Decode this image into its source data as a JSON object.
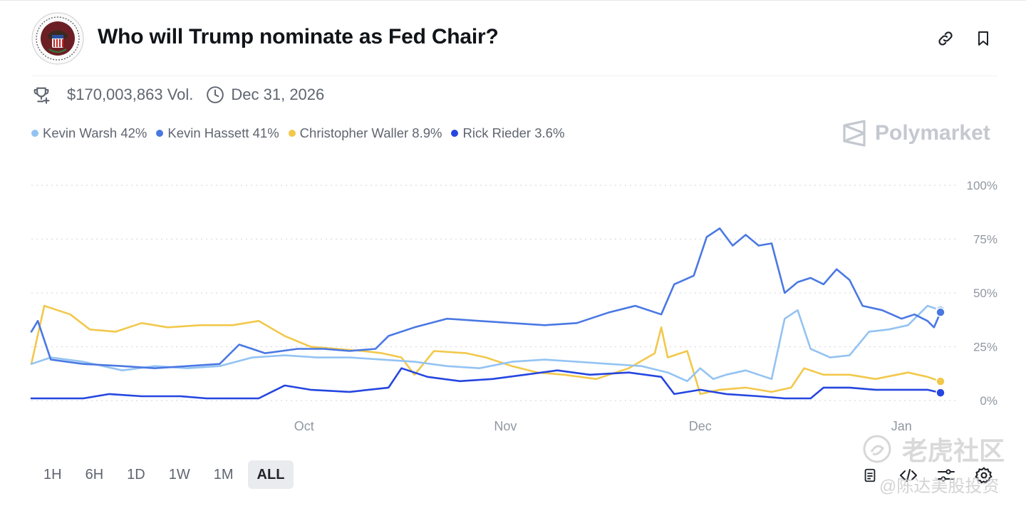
{
  "market": {
    "title": "Who will Trump nominate as Fed Chair?",
    "volume": "$170,003,863 Vol.",
    "end_date": "Dec 31, 2026",
    "brand": "Polymarket"
  },
  "icons": {
    "link": "link-icon",
    "bookmark": "bookmark-icon",
    "trophy": "trophy-icon",
    "clock": "clock-icon",
    "doc": "document-icon",
    "embed": "embed-code-icon",
    "filter": "sliders-icon",
    "settings": "gear-icon",
    "logo": "federal-reserve-seal-icon"
  },
  "legend": [
    {
      "label": "Kevin Warsh 42%",
      "color": "#93c3f2"
    },
    {
      "label": "Kevin Hassett 41%",
      "color": "#4a78e3"
    },
    {
      "label": "Christopher Waller 8.9%",
      "color": "#f2c84b"
    },
    {
      "label": "Rick Rieder 3.6%",
      "color": "#2546e0"
    }
  ],
  "ranges": [
    "1H",
    "6H",
    "1D",
    "1W",
    "1M",
    "ALL"
  ],
  "active_range": "ALL",
  "watermark": {
    "line1": "老虎社区",
    "line2": "@陈达美股投资"
  },
  "chart_data": {
    "type": "line",
    "x_ticks": [
      "Oct",
      "Nov",
      "Dec",
      "Jan"
    ],
    "y_ticks": [
      "100%",
      "75%",
      "50%",
      "25%",
      "0%"
    ],
    "ylim": [
      0,
      100
    ],
    "grid": true,
    "x_domain": [
      "2025-08-20",
      "2026-01-07"
    ],
    "series": [
      {
        "name": "Kevin Warsh",
        "color": "#93c3f2",
        "end_value": 42,
        "points": [
          [
            "2025-08-20",
            17
          ],
          [
            "2025-08-23",
            20
          ],
          [
            "2025-08-28",
            18
          ],
          [
            "2025-09-03",
            14
          ],
          [
            "2025-09-08",
            16
          ],
          [
            "2025-09-13",
            15
          ],
          [
            "2025-09-18",
            16
          ],
          [
            "2025-09-23",
            20
          ],
          [
            "2025-09-28",
            21
          ],
          [
            "2025-10-03",
            20
          ],
          [
            "2025-10-08",
            20
          ],
          [
            "2025-10-13",
            19
          ],
          [
            "2025-10-18",
            18
          ],
          [
            "2025-10-23",
            16
          ],
          [
            "2025-10-28",
            15
          ],
          [
            "2025-11-02",
            18
          ],
          [
            "2025-11-07",
            19
          ],
          [
            "2025-11-12",
            18
          ],
          [
            "2025-11-17",
            17
          ],
          [
            "2025-11-22",
            16
          ],
          [
            "2025-11-26",
            13
          ],
          [
            "2025-11-29",
            9
          ],
          [
            "2025-12-01",
            15
          ],
          [
            "2025-12-03",
            10
          ],
          [
            "2025-12-05",
            12
          ],
          [
            "2025-12-08",
            14
          ],
          [
            "2025-12-10",
            12
          ],
          [
            "2025-12-12",
            10
          ],
          [
            "2025-12-14",
            38
          ],
          [
            "2025-12-16",
            42
          ],
          [
            "2025-12-18",
            24
          ],
          [
            "2025-12-21",
            20
          ],
          [
            "2025-12-24",
            21
          ],
          [
            "2025-12-27",
            32
          ],
          [
            "2025-12-30",
            33
          ],
          [
            "2026-01-02",
            35
          ],
          [
            "2026-01-05",
            44
          ],
          [
            "2026-01-07",
            42
          ]
        ]
      },
      {
        "name": "Kevin Hassett",
        "color": "#4a78e3",
        "end_value": 41,
        "points": [
          [
            "2025-08-20",
            32
          ],
          [
            "2025-08-21",
            37
          ],
          [
            "2025-08-23",
            19
          ],
          [
            "2025-08-28",
            17
          ],
          [
            "2025-09-03",
            16
          ],
          [
            "2025-09-08",
            15
          ],
          [
            "2025-09-13",
            16
          ],
          [
            "2025-09-18",
            17
          ],
          [
            "2025-09-21",
            26
          ],
          [
            "2025-09-25",
            22
          ],
          [
            "2025-09-30",
            24
          ],
          [
            "2025-10-04",
            24
          ],
          [
            "2025-10-08",
            23
          ],
          [
            "2025-10-12",
            24
          ],
          [
            "2025-10-14",
            30
          ],
          [
            "2025-10-18",
            34
          ],
          [
            "2025-10-23",
            38
          ],
          [
            "2025-10-28",
            37
          ],
          [
            "2025-11-02",
            36
          ],
          [
            "2025-11-07",
            35
          ],
          [
            "2025-11-12",
            36
          ],
          [
            "2025-11-17",
            41
          ],
          [
            "2025-11-21",
            44
          ],
          [
            "2025-11-25",
            40
          ],
          [
            "2025-11-27",
            54
          ],
          [
            "2025-11-30",
            58
          ],
          [
            "2025-12-02",
            76
          ],
          [
            "2025-12-04",
            80
          ],
          [
            "2025-12-06",
            72
          ],
          [
            "2025-12-08",
            77
          ],
          [
            "2025-12-10",
            72
          ],
          [
            "2025-12-12",
            73
          ],
          [
            "2025-12-14",
            50
          ],
          [
            "2025-12-16",
            55
          ],
          [
            "2025-12-18",
            57
          ],
          [
            "2025-12-20",
            54
          ],
          [
            "2025-12-22",
            61
          ],
          [
            "2025-12-24",
            56
          ],
          [
            "2025-12-26",
            44
          ],
          [
            "2025-12-29",
            42
          ],
          [
            "2026-01-01",
            38
          ],
          [
            "2026-01-03",
            40
          ],
          [
            "2026-01-05",
            37
          ],
          [
            "2026-01-06",
            34
          ],
          [
            "2026-01-07",
            41
          ]
        ]
      },
      {
        "name": "Christopher Waller",
        "color": "#f2c84b",
        "end_value": 8.9,
        "points": [
          [
            "2025-08-20",
            17
          ],
          [
            "2025-08-22",
            44
          ],
          [
            "2025-08-24",
            42
          ],
          [
            "2025-08-26",
            40
          ],
          [
            "2025-08-29",
            33
          ],
          [
            "2025-09-02",
            32
          ],
          [
            "2025-09-06",
            36
          ],
          [
            "2025-09-10",
            34
          ],
          [
            "2025-09-15",
            35
          ],
          [
            "2025-09-20",
            35
          ],
          [
            "2025-09-24",
            37
          ],
          [
            "2025-09-28",
            30
          ],
          [
            "2025-10-02",
            25
          ],
          [
            "2025-10-06",
            24
          ],
          [
            "2025-10-10",
            23
          ],
          [
            "2025-10-13",
            22
          ],
          [
            "2025-10-16",
            20
          ],
          [
            "2025-10-18",
            12
          ],
          [
            "2025-10-21",
            23
          ],
          [
            "2025-10-26",
            22
          ],
          [
            "2025-10-29",
            20
          ],
          [
            "2025-11-02",
            16
          ],
          [
            "2025-11-06",
            13
          ],
          [
            "2025-11-10",
            12
          ],
          [
            "2025-11-15",
            10
          ],
          [
            "2025-11-20",
            15
          ],
          [
            "2025-11-24",
            22
          ],
          [
            "2025-11-25",
            34
          ],
          [
            "2025-11-26",
            20
          ],
          [
            "2025-11-29",
            23
          ],
          [
            "2025-12-01",
            3
          ],
          [
            "2025-12-04",
            5
          ],
          [
            "2025-12-08",
            6
          ],
          [
            "2025-12-12",
            4
          ],
          [
            "2025-12-15",
            6
          ],
          [
            "2025-12-17",
            15
          ],
          [
            "2025-12-20",
            12
          ],
          [
            "2025-12-24",
            12
          ],
          [
            "2025-12-28",
            10
          ],
          [
            "2026-01-02",
            13
          ],
          [
            "2026-01-05",
            11
          ],
          [
            "2026-01-07",
            8.9
          ]
        ]
      },
      {
        "name": "Rick Rieder",
        "color": "#2546e0",
        "end_value": 3.6,
        "points": [
          [
            "2025-08-20",
            1
          ],
          [
            "2025-08-28",
            1
          ],
          [
            "2025-09-01",
            3
          ],
          [
            "2025-09-06",
            2
          ],
          [
            "2025-09-12",
            2
          ],
          [
            "2025-09-16",
            1
          ],
          [
            "2025-09-24",
            1
          ],
          [
            "2025-09-28",
            7
          ],
          [
            "2025-10-02",
            5
          ],
          [
            "2025-10-08",
            4
          ],
          [
            "2025-10-14",
            6
          ],
          [
            "2025-10-16",
            15
          ],
          [
            "2025-10-20",
            11
          ],
          [
            "2025-10-25",
            9
          ],
          [
            "2025-10-30",
            10
          ],
          [
            "2025-11-04",
            12
          ],
          [
            "2025-11-09",
            14
          ],
          [
            "2025-11-14",
            12
          ],
          [
            "2025-11-20",
            13
          ],
          [
            "2025-11-25",
            11
          ],
          [
            "2025-11-27",
            3
          ],
          [
            "2025-12-01",
            5
          ],
          [
            "2025-12-05",
            3
          ],
          [
            "2025-12-10",
            2
          ],
          [
            "2025-12-14",
            1
          ],
          [
            "2025-12-18",
            1
          ],
          [
            "2025-12-20",
            6
          ],
          [
            "2025-12-24",
            6
          ],
          [
            "2025-12-28",
            5
          ],
          [
            "2026-01-02",
            5
          ],
          [
            "2026-01-05",
            5
          ],
          [
            "2026-01-07",
            3.6
          ]
        ]
      }
    ]
  }
}
